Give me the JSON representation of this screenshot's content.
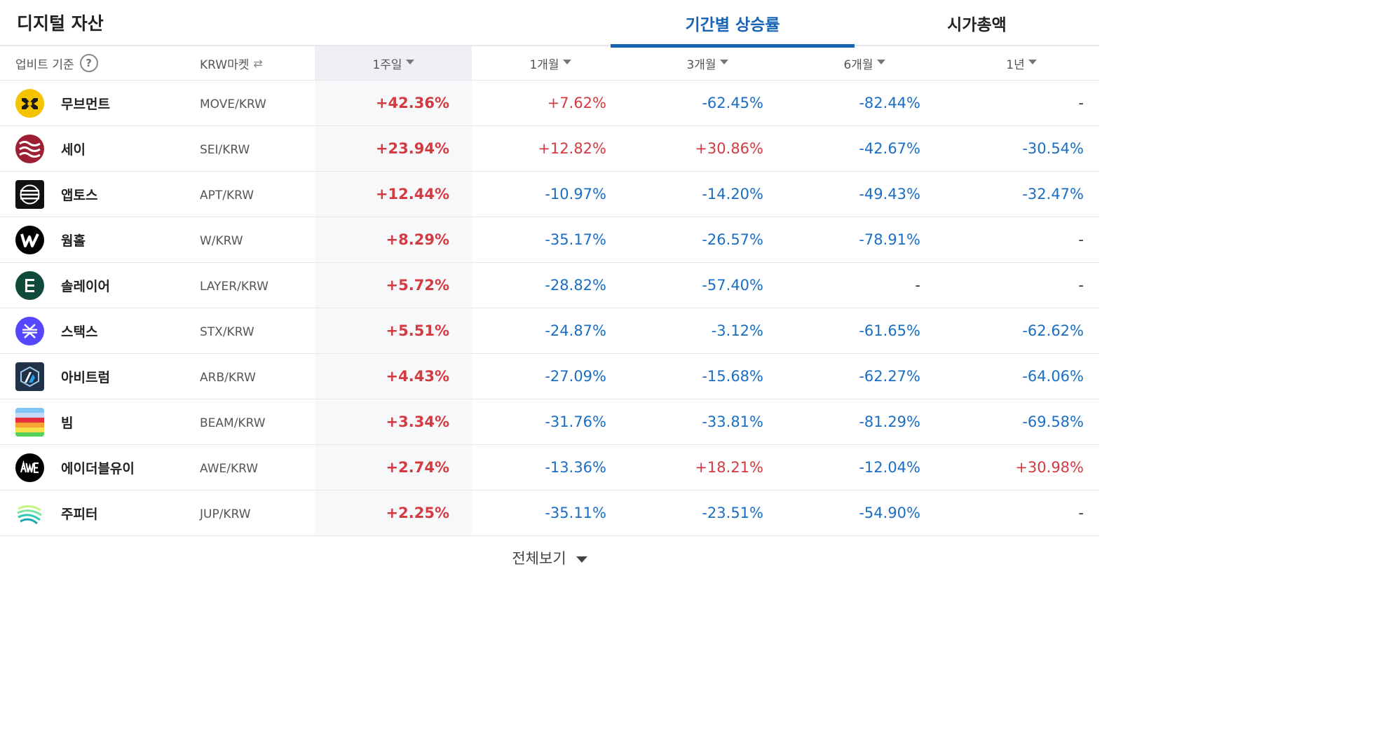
{
  "header": {
    "title": "디지털 자산",
    "tabs": [
      {
        "label": "기간별 상승률",
        "active": true
      },
      {
        "label": "시가총액",
        "active": false
      }
    ]
  },
  "columns": {
    "basis": "업비트 기준",
    "market": "KRW마켓",
    "w1": "1주일",
    "m1": "1개월",
    "m3": "3개월",
    "m6": "6개월",
    "y1": "1년"
  },
  "colors": {
    "accent": "#1763b6",
    "up": "#d43a42",
    "down": "#1a6ec4"
  },
  "rows": [
    {
      "name": "무브먼트",
      "pair": "MOVE/KRW",
      "icon": "movement-logo-icon",
      "w1": "+42.36%",
      "m1": "+7.62%",
      "m3": "-62.45%",
      "m6": "-82.44%",
      "y1": "-"
    },
    {
      "name": "세이",
      "pair": "SEI/KRW",
      "icon": "sei-logo-icon",
      "w1": "+23.94%",
      "m1": "+12.82%",
      "m3": "+30.86%",
      "m6": "-42.67%",
      "y1": "-30.54%"
    },
    {
      "name": "앱토스",
      "pair": "APT/KRW",
      "icon": "aptos-logo-icon",
      "w1": "+12.44%",
      "m1": "-10.97%",
      "m3": "-14.20%",
      "m6": "-49.43%",
      "y1": "-32.47%"
    },
    {
      "name": "웜홀",
      "pair": "W/KRW",
      "icon": "wormhole-logo-icon",
      "w1": "+8.29%",
      "m1": "-35.17%",
      "m3": "-26.57%",
      "m6": "-78.91%",
      "y1": "-"
    },
    {
      "name": "솔레이어",
      "pair": "LAYER/KRW",
      "icon": "solayer-logo-icon",
      "w1": "+5.72%",
      "m1": "-28.82%",
      "m3": "-57.40%",
      "m6": "-",
      "y1": "-"
    },
    {
      "name": "스택스",
      "pair": "STX/KRW",
      "icon": "stacks-logo-icon",
      "w1": "+5.51%",
      "m1": "-24.87%",
      "m3": "-3.12%",
      "m6": "-61.65%",
      "y1": "-62.62%"
    },
    {
      "name": "아비트럼",
      "pair": "ARB/KRW",
      "icon": "arbitrum-logo-icon",
      "w1": "+4.43%",
      "m1": "-27.09%",
      "m3": "-15.68%",
      "m6": "-62.27%",
      "y1": "-64.06%"
    },
    {
      "name": "빔",
      "pair": "BEAM/KRW",
      "icon": "beam-logo-icon",
      "w1": "+3.34%",
      "m1": "-31.76%",
      "m3": "-33.81%",
      "m6": "-81.29%",
      "y1": "-69.58%"
    },
    {
      "name": "에이더블유이",
      "pair": "AWE/KRW",
      "icon": "awe-logo-icon",
      "w1": "+2.74%",
      "m1": "-13.36%",
      "m3": "+18.21%",
      "m6": "-12.04%",
      "y1": "+30.98%"
    },
    {
      "name": "주피터",
      "pair": "JUP/KRW",
      "icon": "jupiter-logo-icon",
      "w1": "+2.25%",
      "m1": "-35.11%",
      "m3": "-23.51%",
      "m6": "-54.90%",
      "y1": "-"
    }
  ],
  "footer": {
    "label": "전체보기"
  }
}
